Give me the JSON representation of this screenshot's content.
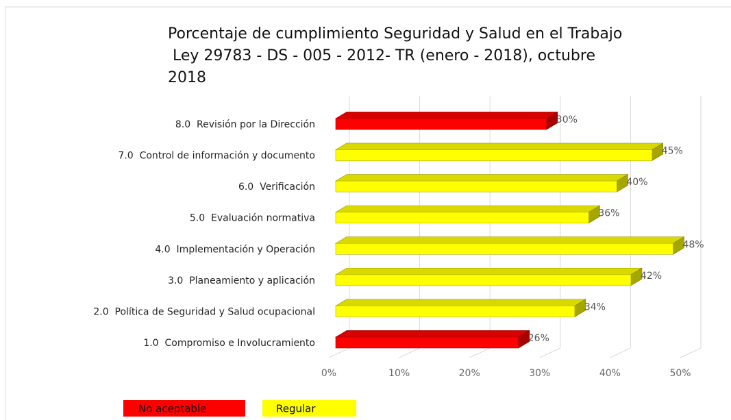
{
  "chart_data": {
    "type": "bar3d",
    "orientation": "horizontal",
    "title": [
      "Porcentaje de cumplimiento Seguridad y Salud en el Trabajo",
      " Ley 29783 - DS - 005 - 2012- TR (enero - 2018), octubre",
      "2018"
    ],
    "categories": [
      "1.0  Compromiso e Involucramiento",
      "2.0  Política de Seguridad y Salud ocupacional",
      "3.0  Planeamiento y aplicación",
      "4.0  Implementación y Operación",
      "5.0  Evaluación normativa",
      "6.0  Verificación",
      "7.0  Control de información y documento",
      "8.0  Revisión por la Dirección"
    ],
    "values": [
      26,
      34,
      42,
      48,
      36,
      40,
      45,
      30
    ],
    "value_labels": [
      "26%",
      "34%",
      "42%",
      "48%",
      "36%",
      "40%",
      "45%",
      "30%"
    ],
    "colors": [
      "#ff0000",
      "#ffff00",
      "#ffff00",
      "#ffff00",
      "#ffff00",
      "#ffff00",
      "#ffff00",
      "#ff0000"
    ],
    "xlim": [
      0,
      50
    ],
    "xticks": [
      {
        "value": 0,
        "label": "0%"
      },
      {
        "value": 10,
        "label": "10%"
      },
      {
        "value": 20,
        "label": "20%"
      },
      {
        "value": 30,
        "label": "30%"
      },
      {
        "value": 40,
        "label": "40%"
      },
      {
        "value": 50,
        "label": "50%"
      }
    ],
    "grid": true,
    "legend": [
      {
        "label": "No aceptable",
        "color": "#ff0000"
      },
      {
        "label": "Regular",
        "color": "#ffff00"
      }
    ]
  }
}
